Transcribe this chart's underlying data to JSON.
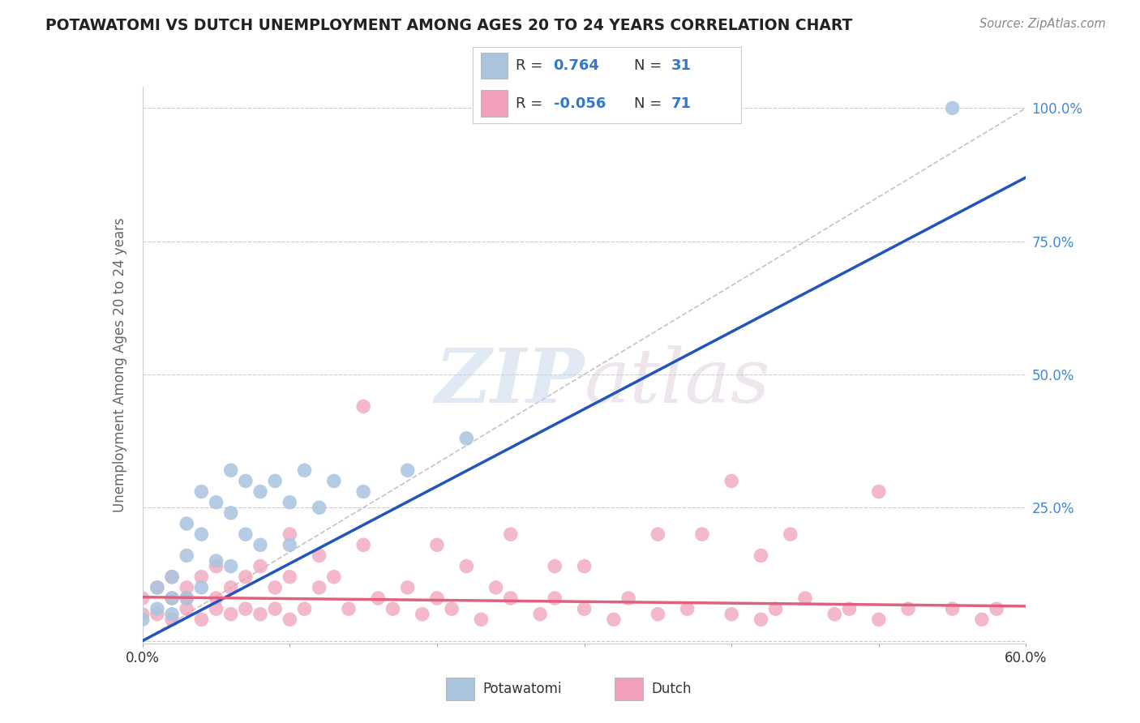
{
  "title": "POTAWATOMI VS DUTCH UNEMPLOYMENT AMONG AGES 20 TO 24 YEARS CORRELATION CHART",
  "source": "Source: ZipAtlas.com",
  "ylabel": "Unemployment Among Ages 20 to 24 years",
  "xlim": [
    0.0,
    0.6
  ],
  "ylim": [
    -0.005,
    1.04
  ],
  "ytick_positions": [
    0.0,
    0.25,
    0.5,
    0.75,
    1.0
  ],
  "ytick_labels": [
    "",
    "25.0%",
    "50.0%",
    "75.0%",
    "100.0%"
  ],
  "potawatomi_color": "#aac4e0",
  "potawatomi_line_color": "#2255bb",
  "dutch_color": "#f0a0b8",
  "dutch_line_color": "#e06080",
  "background_color": "#ffffff",
  "pot_line_x0": 0.0,
  "pot_line_y0": 0.0,
  "pot_line_x1": 0.6,
  "pot_line_y1": 0.87,
  "dutch_line_x0": 0.0,
  "dutch_line_y0": 0.082,
  "dutch_line_x1": 0.6,
  "dutch_line_y1": 0.065,
  "diag_line_x0": 0.0,
  "diag_line_y0": 0.0,
  "diag_line_x1": 0.6,
  "diag_line_y1": 1.0,
  "pot_x": [
    0.0,
    0.01,
    0.01,
    0.02,
    0.02,
    0.02,
    0.03,
    0.03,
    0.03,
    0.04,
    0.04,
    0.04,
    0.05,
    0.05,
    0.06,
    0.06,
    0.06,
    0.07,
    0.07,
    0.08,
    0.08,
    0.09,
    0.1,
    0.1,
    0.11,
    0.12,
    0.13,
    0.15,
    0.18,
    0.22,
    0.55
  ],
  "pot_y": [
    0.04,
    0.06,
    0.1,
    0.05,
    0.12,
    0.08,
    0.08,
    0.16,
    0.22,
    0.1,
    0.2,
    0.28,
    0.15,
    0.26,
    0.14,
    0.24,
    0.32,
    0.2,
    0.3,
    0.18,
    0.28,
    0.3,
    0.18,
    0.26,
    0.32,
    0.25,
    0.3,
    0.28,
    0.32,
    0.38,
    1.0
  ],
  "dutch_x": [
    0.0,
    0.0,
    0.01,
    0.01,
    0.02,
    0.02,
    0.02,
    0.03,
    0.03,
    0.03,
    0.04,
    0.04,
    0.05,
    0.05,
    0.05,
    0.06,
    0.06,
    0.07,
    0.07,
    0.08,
    0.08,
    0.09,
    0.09,
    0.1,
    0.1,
    0.11,
    0.12,
    0.13,
    0.14,
    0.15,
    0.16,
    0.17,
    0.18,
    0.19,
    0.2,
    0.21,
    0.22,
    0.23,
    0.24,
    0.25,
    0.27,
    0.28,
    0.3,
    0.32,
    0.33,
    0.35,
    0.37,
    0.4,
    0.42,
    0.43,
    0.45,
    0.47,
    0.48,
    0.5,
    0.52,
    0.55,
    0.57,
    0.58,
    0.35,
    0.4,
    0.44,
    0.5,
    0.28,
    0.3,
    0.15,
    0.2,
    0.1,
    0.12,
    0.25,
    0.38,
    0.42
  ],
  "dutch_y": [
    0.05,
    0.08,
    0.05,
    0.1,
    0.04,
    0.08,
    0.12,
    0.06,
    0.1,
    0.08,
    0.04,
    0.12,
    0.06,
    0.14,
    0.08,
    0.05,
    0.1,
    0.06,
    0.12,
    0.05,
    0.14,
    0.06,
    0.1,
    0.04,
    0.12,
    0.06,
    0.1,
    0.12,
    0.06,
    0.44,
    0.08,
    0.06,
    0.1,
    0.05,
    0.08,
    0.06,
    0.14,
    0.04,
    0.1,
    0.08,
    0.05,
    0.08,
    0.06,
    0.04,
    0.08,
    0.05,
    0.06,
    0.05,
    0.04,
    0.06,
    0.08,
    0.05,
    0.06,
    0.04,
    0.06,
    0.06,
    0.04,
    0.06,
    0.2,
    0.3,
    0.2,
    0.28,
    0.14,
    0.14,
    0.18,
    0.18,
    0.2,
    0.16,
    0.2,
    0.2,
    0.16
  ]
}
